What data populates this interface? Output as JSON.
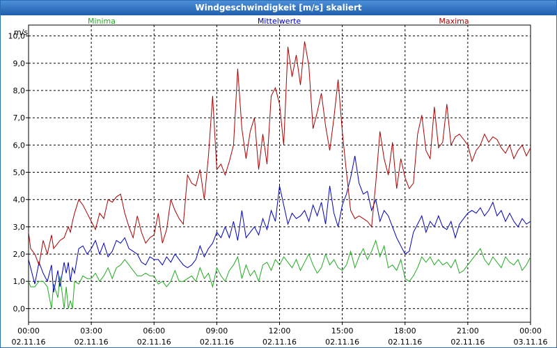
{
  "window": {
    "title": "Windgeschwindigkeit [m/s] skaliert"
  },
  "chart_data": {
    "type": "line",
    "title": "Windgeschwindigkeit [m/s] skaliert",
    "ylabel": "m/s",
    "xlabel": "",
    "ylim": [
      -0.5,
      10.4
    ],
    "xlim": [
      0,
      24
    ],
    "grid": true,
    "yticks": [
      {
        "v": 0,
        "label": "0,0"
      },
      {
        "v": 1,
        "label": "1,0"
      },
      {
        "v": 2,
        "label": "2,0"
      },
      {
        "v": 3,
        "label": "3,0"
      },
      {
        "v": 4,
        "label": "4,0"
      },
      {
        "v": 5,
        "label": "5,0"
      },
      {
        "v": 6,
        "label": "6,0"
      },
      {
        "v": 7,
        "label": "7,0"
      },
      {
        "v": 8,
        "label": "8,0"
      },
      {
        "v": 9,
        "label": "9,0"
      },
      {
        "v": 10,
        "label": "10,0"
      }
    ],
    "xticks": [
      {
        "v": 0,
        "time": "00:00",
        "date": "02.11.16"
      },
      {
        "v": 3,
        "time": "03:00",
        "date": "02.11.16"
      },
      {
        "v": 6,
        "time": "06:00",
        "date": "02.11.16"
      },
      {
        "v": 9,
        "time": "09:00",
        "date": "02.11.16"
      },
      {
        "v": 12,
        "time": "12:00",
        "date": "02.11.16"
      },
      {
        "v": 15,
        "time": "15:00",
        "date": "02.11.16"
      },
      {
        "v": 18,
        "time": "18:00",
        "date": "02.11.16"
      },
      {
        "v": 21,
        "time": "21:00",
        "date": "02.11.16"
      },
      {
        "v": 24,
        "time": "00:00",
        "date": "03.11.16"
      }
    ],
    "series": [
      {
        "name": "Minima",
        "color": "#22aa22",
        "x": [
          0,
          0.1,
          0.3,
          0.5,
          0.7,
          0.9,
          1.1,
          1.2,
          1.4,
          1.5,
          1.7,
          1.8,
          1.9,
          2.0,
          2.1,
          2.2,
          2.4,
          2.6,
          2.8,
          3.0,
          3.2,
          3.4,
          3.6,
          3.8,
          4.0,
          4.2,
          4.4,
          4.6,
          4.8,
          5.0,
          5.2,
          5.4,
          5.6,
          5.8,
          6.0,
          6.2,
          6.4,
          6.6,
          6.8,
          7.0,
          7.2,
          7.4,
          7.6,
          7.8,
          8.0,
          8.2,
          8.4,
          8.6,
          8.8,
          9.0,
          9.2,
          9.4,
          9.6,
          9.8,
          10.0,
          10.2,
          10.4,
          10.6,
          10.8,
          11.0,
          11.2,
          11.4,
          11.6,
          11.8,
          12.0,
          12.2,
          12.4,
          12.6,
          12.8,
          13.0,
          13.2,
          13.4,
          13.6,
          13.8,
          14.0,
          14.2,
          14.4,
          14.6,
          14.8,
          15.0,
          15.2,
          15.4,
          15.6,
          15.8,
          16.0,
          16.2,
          16.4,
          16.6,
          16.8,
          17.0,
          17.2,
          17.4,
          17.6,
          17.8,
          18.0,
          18.2,
          18.4,
          18.6,
          18.8,
          19.0,
          19.2,
          19.4,
          19.6,
          19.8,
          20.0,
          20.2,
          20.4,
          20.6,
          20.8,
          21.0,
          21.2,
          21.4,
          21.6,
          21.8,
          22.0,
          22.2,
          22.4,
          22.6,
          22.8,
          23.0,
          23.2,
          23.4,
          23.6,
          23.8,
          24.0
        ],
        "values": [
          1.0,
          0.8,
          0.8,
          1.0,
          1.0,
          0.8,
          0.0,
          0.9,
          0.4,
          1.2,
          0.0,
          0.8,
          0.0,
          0.3,
          0.0,
          1.0,
          0.9,
          1.2,
          1.1,
          1.1,
          1.3,
          1.0,
          1.2,
          1.5,
          1.1,
          1.5,
          1.6,
          1.8,
          1.6,
          1.4,
          1.2,
          1.2,
          1.3,
          1.2,
          1.2,
          0.9,
          1.0,
          0.8,
          1.0,
          1.4,
          1.0,
          1.0,
          1.1,
          1.2,
          1.0,
          1.5,
          1.1,
          1.3,
          0.8,
          1.5,
          1.2,
          1.0,
          1.4,
          1.6,
          1.9,
          1.1,
          1.6,
          1.2,
          1.4,
          1.0,
          1.6,
          1.7,
          1.4,
          1.8,
          1.6,
          1.9,
          1.7,
          1.5,
          1.8,
          1.4,
          1.7,
          2.0,
          1.6,
          1.3,
          1.5,
          2.0,
          1.6,
          1.8,
          1.5,
          1.4,
          1.6,
          2.1,
          1.5,
          1.9,
          2.2,
          1.8,
          2.1,
          2.5,
          1.9,
          2.3,
          1.5,
          1.6,
          1.4,
          1.8,
          1.1,
          1.0,
          1.2,
          1.5,
          1.9,
          1.7,
          1.9,
          1.6,
          1.8,
          1.6,
          1.7,
          1.5,
          1.8,
          1.3,
          1.4,
          1.6,
          1.8,
          2.0,
          2.2,
          1.8,
          1.6,
          1.9,
          1.7,
          1.5,
          1.9,
          1.7,
          1.6,
          1.8,
          1.4,
          1.6,
          1.9
        ]
      },
      {
        "name": "Mittelwerte",
        "color": "#0000bb",
        "x": [
          0,
          0.1,
          0.3,
          0.5,
          0.7,
          0.9,
          1.1,
          1.2,
          1.4,
          1.5,
          1.7,
          1.8,
          1.9,
          2.0,
          2.1,
          2.2,
          2.4,
          2.6,
          2.8,
          3.0,
          3.2,
          3.4,
          3.6,
          3.8,
          4.0,
          4.2,
          4.4,
          4.6,
          4.8,
          5.0,
          5.2,
          5.4,
          5.6,
          5.8,
          6.0,
          6.2,
          6.4,
          6.6,
          6.8,
          7.0,
          7.2,
          7.4,
          7.6,
          7.8,
          8.0,
          8.2,
          8.4,
          8.6,
          8.8,
          9.0,
          9.2,
          9.4,
          9.6,
          9.8,
          10.0,
          10.2,
          10.4,
          10.6,
          10.8,
          11.0,
          11.2,
          11.4,
          11.6,
          11.8,
          12.0,
          12.2,
          12.4,
          12.6,
          12.8,
          13.0,
          13.2,
          13.4,
          13.6,
          13.8,
          14.0,
          14.2,
          14.4,
          14.6,
          14.8,
          15.0,
          15.2,
          15.4,
          15.6,
          15.8,
          16.0,
          16.2,
          16.4,
          16.6,
          16.8,
          17.0,
          17.2,
          17.4,
          17.6,
          17.8,
          18.0,
          18.2,
          18.4,
          18.6,
          18.8,
          19.0,
          19.2,
          19.4,
          19.6,
          19.8,
          20.0,
          20.2,
          20.4,
          20.6,
          20.8,
          21.0,
          21.2,
          21.4,
          21.6,
          21.8,
          22.0,
          22.2,
          22.4,
          22.6,
          22.8,
          23.0,
          23.2,
          23.4,
          23.6,
          23.8,
          24.0
        ],
        "values": [
          1.8,
          1.5,
          0.9,
          1.7,
          1.3,
          1.0,
          1.6,
          0.6,
          1.4,
          0.8,
          1.7,
          1.3,
          1.7,
          1.0,
          1.5,
          1.3,
          2.2,
          2.3,
          2.0,
          2.2,
          2.5,
          2.0,
          2.4,
          1.9,
          2.1,
          2.5,
          2.4,
          2.6,
          2.2,
          2.1,
          2.0,
          1.7,
          1.6,
          1.9,
          1.8,
          1.8,
          1.6,
          1.9,
          1.7,
          2.0,
          1.8,
          1.6,
          1.5,
          1.6,
          1.8,
          2.3,
          1.9,
          2.2,
          2.4,
          2.8,
          2.6,
          3.0,
          2.6,
          3.2,
          2.5,
          3.6,
          2.6,
          2.8,
          3.0,
          2.7,
          3.3,
          2.9,
          3.6,
          3.2,
          4.5,
          3.8,
          3.1,
          3.5,
          3.3,
          3.4,
          3.6,
          3.2,
          3.8,
          3.4,
          3.9,
          3.1,
          4.5,
          3.5,
          3.0,
          3.8,
          4.2,
          4.8,
          5.6,
          4.6,
          4.2,
          4.3,
          3.6,
          4.0,
          3.2,
          3.6,
          3.4,
          3.0,
          2.6,
          2.3,
          2.0,
          2.1,
          2.8,
          3.1,
          3.4,
          2.8,
          3.2,
          3.0,
          3.4,
          3.0,
          2.9,
          3.2,
          2.6,
          3.1,
          3.3,
          3.5,
          3.6,
          3.5,
          3.7,
          3.4,
          3.6,
          3.9,
          3.4,
          3.6,
          3.2,
          3.5,
          3.2,
          3.0,
          3.3,
          3.1,
          3.2
        ]
      },
      {
        "name": "Maxima",
        "color": "#aa0000",
        "x": [
          0,
          0.1,
          0.3,
          0.5,
          0.7,
          0.9,
          1.1,
          1.2,
          1.4,
          1.5,
          1.7,
          1.8,
          1.9,
          2.0,
          2.1,
          2.2,
          2.4,
          2.6,
          2.8,
          3.0,
          3.2,
          3.4,
          3.6,
          3.8,
          4.0,
          4.2,
          4.4,
          4.6,
          4.8,
          5.0,
          5.2,
          5.4,
          5.6,
          5.8,
          6.0,
          6.2,
          6.4,
          6.6,
          6.8,
          7.0,
          7.2,
          7.4,
          7.6,
          7.8,
          8.0,
          8.2,
          8.4,
          8.6,
          8.8,
          9.0,
          9.2,
          9.4,
          9.6,
          9.8,
          10.0,
          10.2,
          10.4,
          10.6,
          10.8,
          11.0,
          11.2,
          11.4,
          11.6,
          11.8,
          12.0,
          12.2,
          12.4,
          12.6,
          12.8,
          13.0,
          13.2,
          13.4,
          13.6,
          13.8,
          14.0,
          14.2,
          14.4,
          14.6,
          14.8,
          15.0,
          15.2,
          15.4,
          15.6,
          15.8,
          16.0,
          16.2,
          16.4,
          16.6,
          16.8,
          17.0,
          17.2,
          17.4,
          17.6,
          17.8,
          18.0,
          18.2,
          18.4,
          18.6,
          18.8,
          19.0,
          19.2,
          19.4,
          19.6,
          19.8,
          20.0,
          20.2,
          20.4,
          20.6,
          20.8,
          21.0,
          21.2,
          21.4,
          21.6,
          21.8,
          22.0,
          22.2,
          22.4,
          22.6,
          22.8,
          23.0,
          23.2,
          23.4,
          23.6,
          23.8,
          24.0
        ],
        "values": [
          2.8,
          2.2,
          2.0,
          1.6,
          2.5,
          2.0,
          2.7,
          2.2,
          2.4,
          2.5,
          2.6,
          2.8,
          3.0,
          2.8,
          3.2,
          3.5,
          4.0,
          3.8,
          3.5,
          3.2,
          2.9,
          3.5,
          3.3,
          4.0,
          3.9,
          4.1,
          4.2,
          3.5,
          3.0,
          2.6,
          3.4,
          2.8,
          2.4,
          2.6,
          2.7,
          3.5,
          2.4,
          2.9,
          4.0,
          3.6,
          3.3,
          3.1,
          4.9,
          4.6,
          4.5,
          5.1,
          4.0,
          5.6,
          7.8,
          5.1,
          5.3,
          4.9,
          5.4,
          6.0,
          8.8,
          6.6,
          5.5,
          6.5,
          7.0,
          5.1,
          6.4,
          5.3,
          7.8,
          8.1,
          7.5,
          6.0,
          9.6,
          8.5,
          9.3,
          8.2,
          9.8,
          8.9,
          6.6,
          7.2,
          7.9,
          6.7,
          5.8,
          7.0,
          8.4,
          6.5,
          5.0,
          3.6,
          3.3,
          3.4,
          3.3,
          3.2,
          3.0,
          4.6,
          6.5,
          5.5,
          4.9,
          6.1,
          4.4,
          5.5,
          4.8,
          4.4,
          4.6,
          6.4,
          7.1,
          5.8,
          5.5,
          7.4,
          5.9,
          6.1,
          7.5,
          6.0,
          6.3,
          6.4,
          6.2,
          6.0,
          5.4,
          5.8,
          6.0,
          6.4,
          6.1,
          6.3,
          6.2,
          5.9,
          5.7,
          6.0,
          5.5,
          5.8,
          6.0,
          5.6,
          5.9
        ]
      }
    ]
  }
}
